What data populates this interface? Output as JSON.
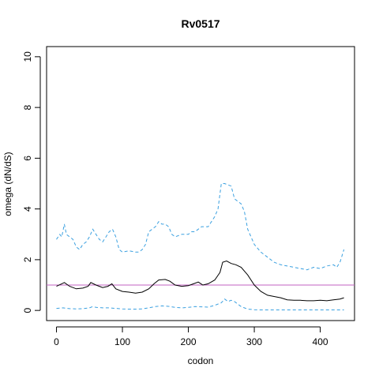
{
  "chart_data": {
    "type": "line",
    "title": "Rv0517",
    "xlabel": "codon",
    "ylabel": "omega (dN/dS)",
    "xlim": [
      -15,
      452
    ],
    "ylim": [
      -0.4,
      10.4
    ],
    "xticks": [
      0,
      100,
      200,
      300,
      400
    ],
    "yticks": [
      0,
      2,
      4,
      6,
      8,
      10
    ],
    "reference_line": {
      "y": 1,
      "color": "#c060c0"
    },
    "grid": false,
    "series": [
      {
        "style": "solid",
        "color": "#000000",
        "x": [
          0,
          8,
          12,
          20,
          30,
          40,
          48,
          52,
          60,
          70,
          78,
          84,
          90,
          100,
          110,
          120,
          130,
          140,
          148,
          155,
          165,
          172,
          180,
          190,
          200,
          208,
          215,
          222,
          230,
          240,
          248,
          252,
          258,
          265,
          272,
          280,
          290,
          300,
          310,
          320,
          330,
          340,
          350,
          360,
          370,
          380,
          390,
          400,
          410,
          420,
          430,
          436
        ],
        "y": [
          0.95,
          1.05,
          1.1,
          0.95,
          0.85,
          0.88,
          0.95,
          1.1,
          1.0,
          0.9,
          0.95,
          1.05,
          0.85,
          0.75,
          0.72,
          0.68,
          0.72,
          0.85,
          1.05,
          1.2,
          1.22,
          1.15,
          1.0,
          0.95,
          0.98,
          1.05,
          1.12,
          1.0,
          1.05,
          1.2,
          1.5,
          1.9,
          1.95,
          1.85,
          1.8,
          1.7,
          1.4,
          1.0,
          0.75,
          0.6,
          0.55,
          0.5,
          0.42,
          0.4,
          0.4,
          0.38,
          0.38,
          0.4,
          0.38,
          0.42,
          0.45,
          0.5
        ]
      },
      {
        "style": "dashed",
        "color": "#3aa0e0",
        "x": [
          0,
          5,
          8,
          12,
          15,
          20,
          25,
          30,
          35,
          40,
          45,
          50,
          55,
          60,
          65,
          70,
          75,
          80,
          85,
          90,
          95,
          100,
          110,
          120,
          125,
          130,
          135,
          140,
          145,
          150,
          155,
          160,
          165,
          170,
          175,
          180,
          190,
          200,
          205,
          210,
          215,
          220,
          225,
          230,
          235,
          240,
          245,
          250,
          255,
          260,
          265,
          270,
          275,
          280,
          285,
          290,
          300,
          310,
          320,
          330,
          340,
          350,
          360,
          370,
          380,
          390,
          400,
          410,
          420,
          425,
          430,
          436
        ],
        "y": [
          2.8,
          3.0,
          2.9,
          3.4,
          3.0,
          2.9,
          2.8,
          2.5,
          2.4,
          2.6,
          2.7,
          2.9,
          3.2,
          3.0,
          2.8,
          2.7,
          2.9,
          3.1,
          3.2,
          2.9,
          2.4,
          2.3,
          2.35,
          2.3,
          2.3,
          2.4,
          2.6,
          3.1,
          3.2,
          3.3,
          3.5,
          3.4,
          3.4,
          3.3,
          3.0,
          2.9,
          3.0,
          3.0,
          3.1,
          3.1,
          3.2,
          3.3,
          3.3,
          3.3,
          3.5,
          3.7,
          4.0,
          5.0,
          5.0,
          4.95,
          4.9,
          4.4,
          4.3,
          4.2,
          3.9,
          3.2,
          2.6,
          2.3,
          2.1,
          1.9,
          1.8,
          1.75,
          1.7,
          1.65,
          1.6,
          1.7,
          1.65,
          1.75,
          1.8,
          1.7,
          1.9,
          2.4
        ]
      },
      {
        "style": "dashed",
        "color": "#3aa0e0",
        "x": [
          0,
          10,
          20,
          30,
          40,
          50,
          55,
          60,
          70,
          80,
          90,
          100,
          110,
          120,
          130,
          140,
          150,
          160,
          170,
          180,
          190,
          200,
          210,
          220,
          230,
          240,
          250,
          255,
          260,
          265,
          270,
          275,
          280,
          290,
          300,
          310,
          320,
          340,
          360,
          380,
          400,
          420,
          436
        ],
        "y": [
          0.08,
          0.1,
          0.07,
          0.06,
          0.07,
          0.1,
          0.15,
          0.12,
          0.1,
          0.1,
          0.08,
          0.06,
          0.05,
          0.05,
          0.06,
          0.1,
          0.15,
          0.18,
          0.16,
          0.12,
          0.1,
          0.12,
          0.15,
          0.14,
          0.13,
          0.2,
          0.3,
          0.45,
          0.35,
          0.4,
          0.35,
          0.25,
          0.15,
          0.05,
          0.03,
          0.02,
          0.02,
          0.02,
          0.02,
          0.02,
          0.02,
          0.02,
          0.02
        ]
      }
    ]
  }
}
